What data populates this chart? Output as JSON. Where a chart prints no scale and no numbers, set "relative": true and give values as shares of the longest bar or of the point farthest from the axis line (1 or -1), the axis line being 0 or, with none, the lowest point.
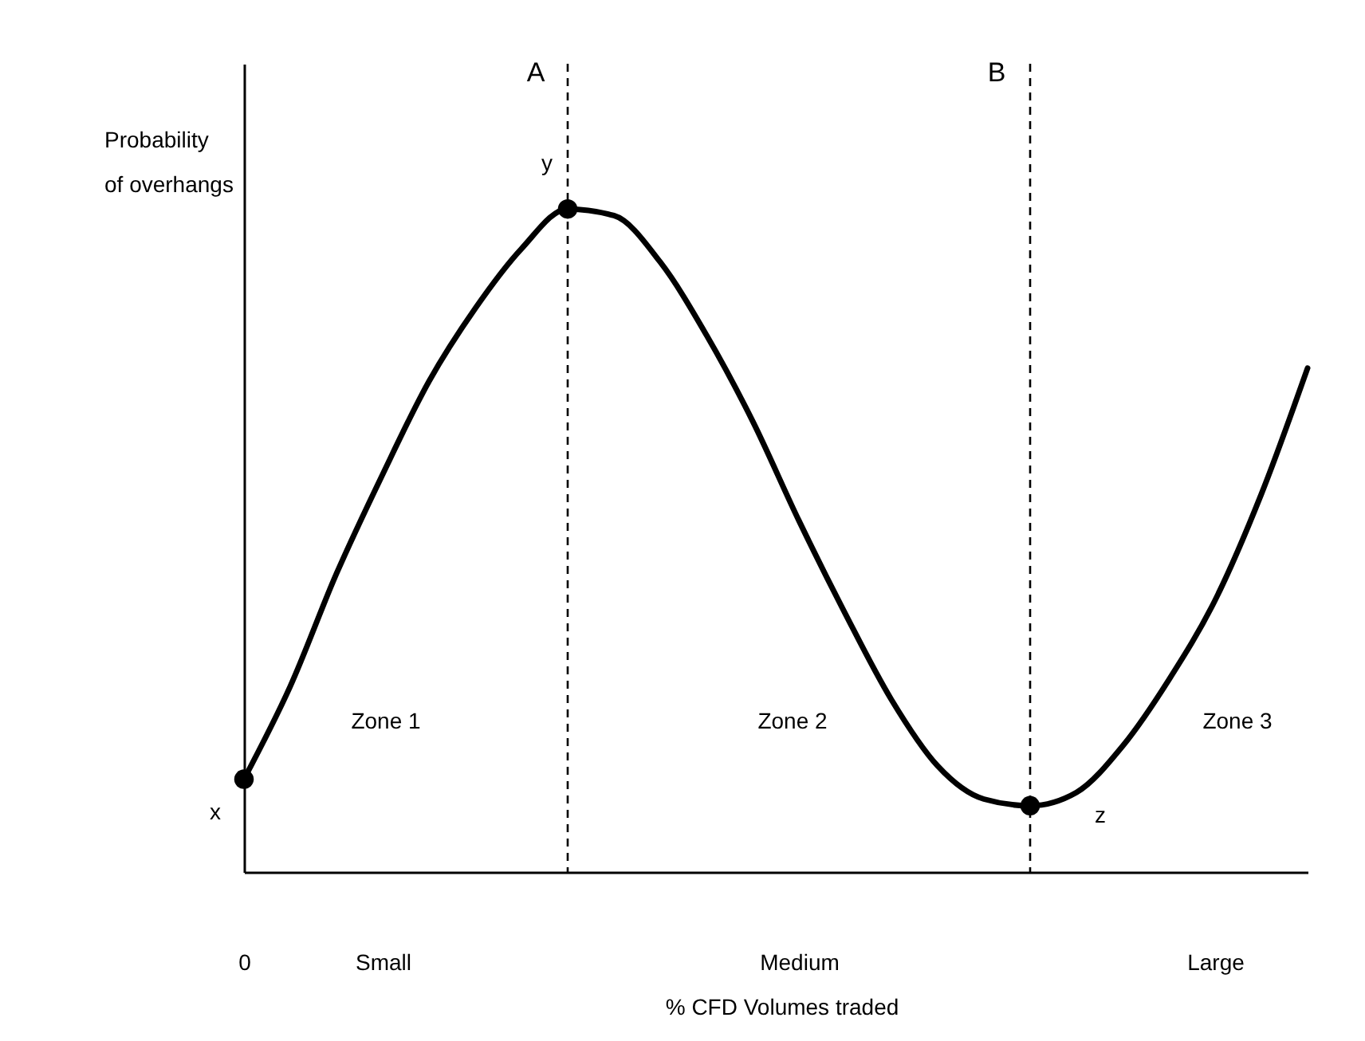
{
  "chart_data": {
    "type": "line",
    "relative": true,
    "xlabel": "% CFD Volumes traded",
    "ylabel": "Probability of overhangs",
    "categories": [
      "0",
      null,
      null,
      "Small",
      null,
      null,
      null,
      null,
      null,
      null,
      null,
      null,
      "Medium",
      null,
      null,
      null,
      null,
      null,
      null,
      null,
      null,
      "Large",
      null,
      null
    ],
    "series": [
      {
        "color": "#000000",
        "marker": "none",
        "line_style": "solid",
        "values": [
          0.14,
          0.28,
          0.45,
          0.6,
          0.74,
          0.85,
          0.94,
          1,
          0.99,
          0.92,
          0.81,
          0.68,
          0.53,
          0.39,
          0.26,
          0.16,
          0.11,
          0.1,
          0.12,
          0.19,
          0.29,
          0.41,
          0.57,
          0.76
        ]
      },
      {
        "type": "scatter",
        "color": "#000000",
        "marker": "circle",
        "values": [
          0.14,
          null,
          null,
          null,
          null,
          null,
          null,
          1,
          null,
          null,
          null,
          null,
          null,
          null,
          null,
          null,
          null,
          0.1,
          null,
          null,
          null,
          null,
          null,
          null
        ]
      }
    ],
    "annotations": [
      "A",
      "B",
      "y",
      "x",
      "z",
      "Zone 1",
      "Zone 2",
      "Zone 3"
    ]
  }
}
